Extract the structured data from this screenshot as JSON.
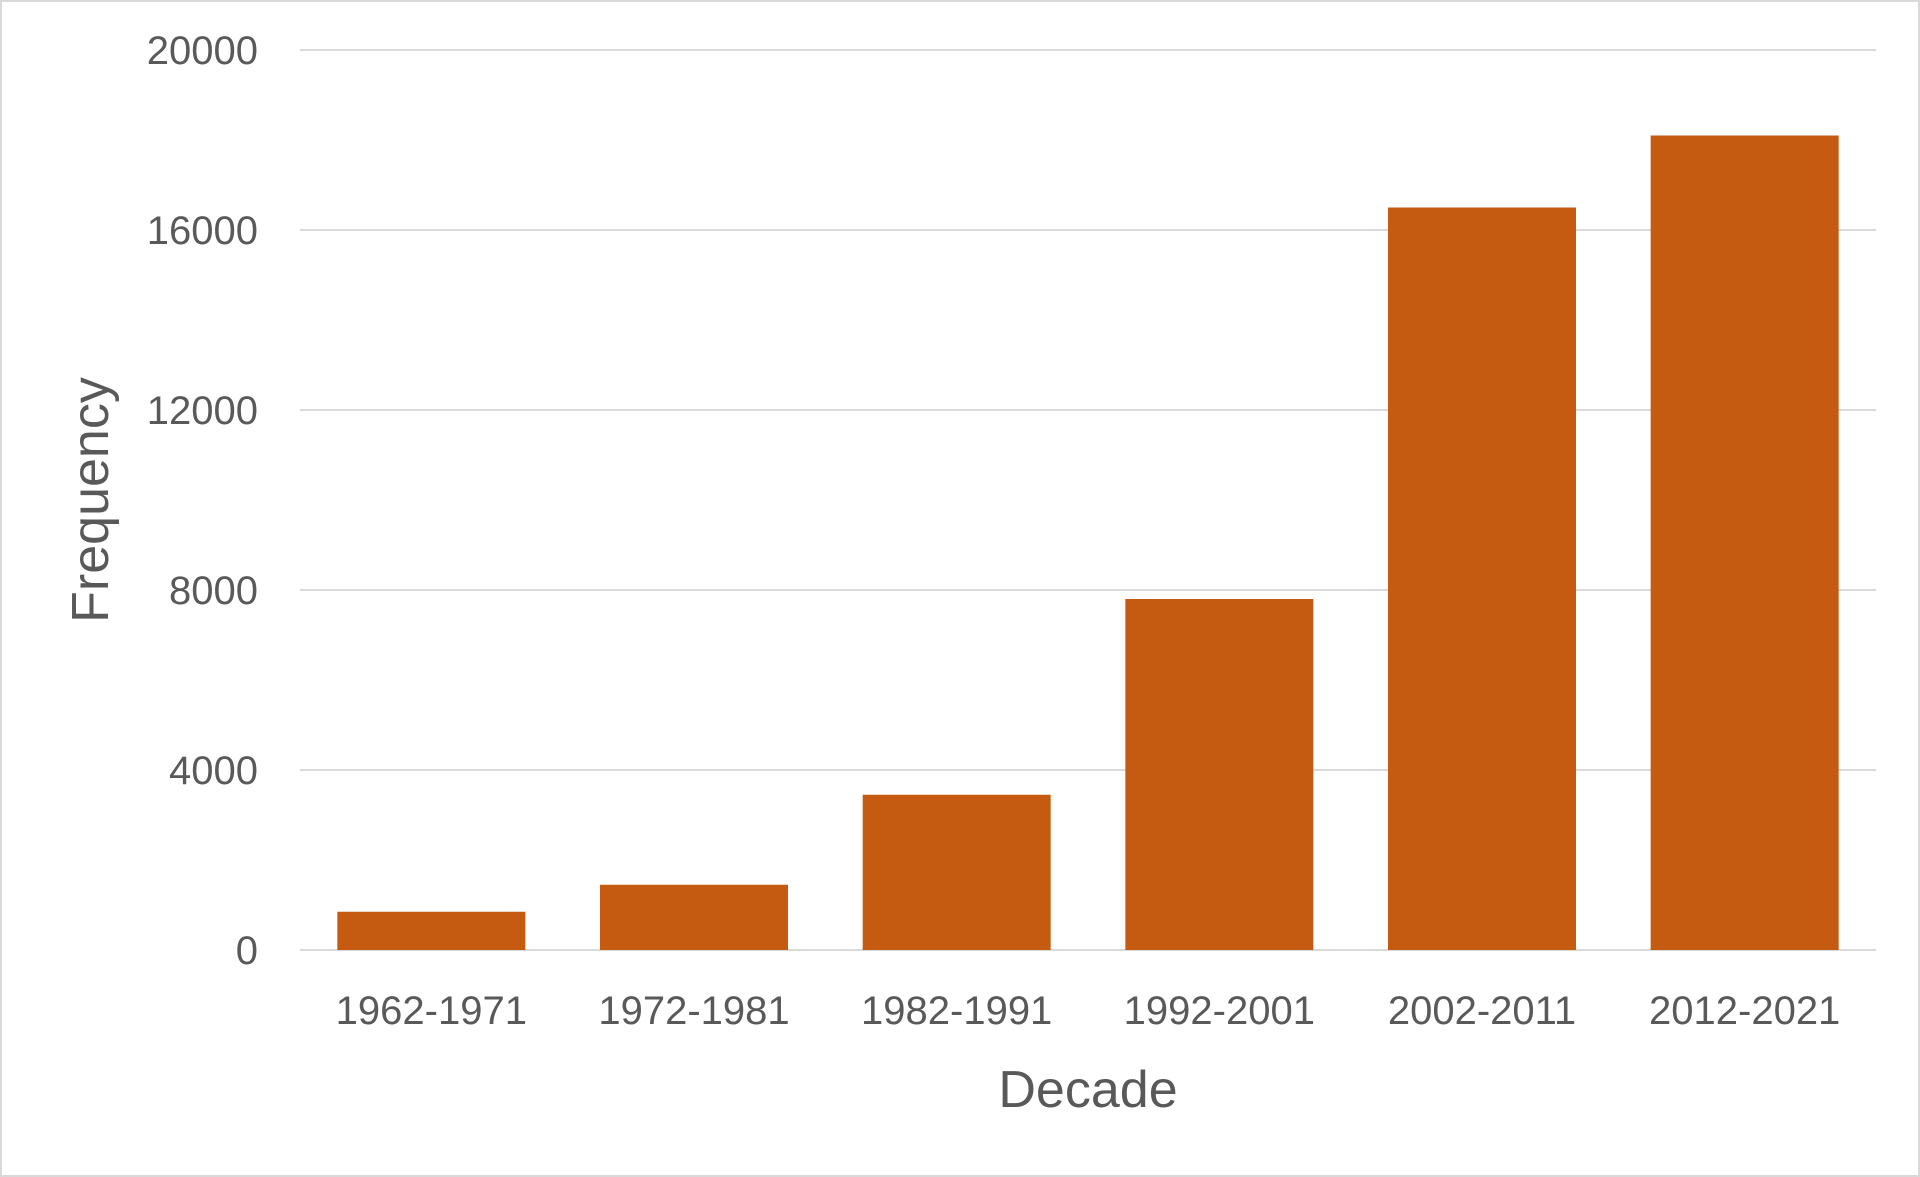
{
  "chart_data": {
    "type": "bar",
    "title": "",
    "xlabel": "Decade",
    "ylabel": "Frequency",
    "categories": [
      "1962-1971",
      "1972-1981",
      "1982-1991",
      "1992-2001",
      "2002-2011",
      "2012-2021"
    ],
    "values": [
      850,
      1450,
      3450,
      7800,
      16500,
      18100
    ],
    "ylim": [
      0,
      20000
    ],
    "yticks": [
      "0",
      "4000",
      "8000",
      "12000",
      "16000",
      "20000"
    ],
    "grid": true,
    "legend": "none",
    "colors": {
      "bar": "#c55a11",
      "grid": "#d9d9d9",
      "text": "#595959"
    }
  }
}
